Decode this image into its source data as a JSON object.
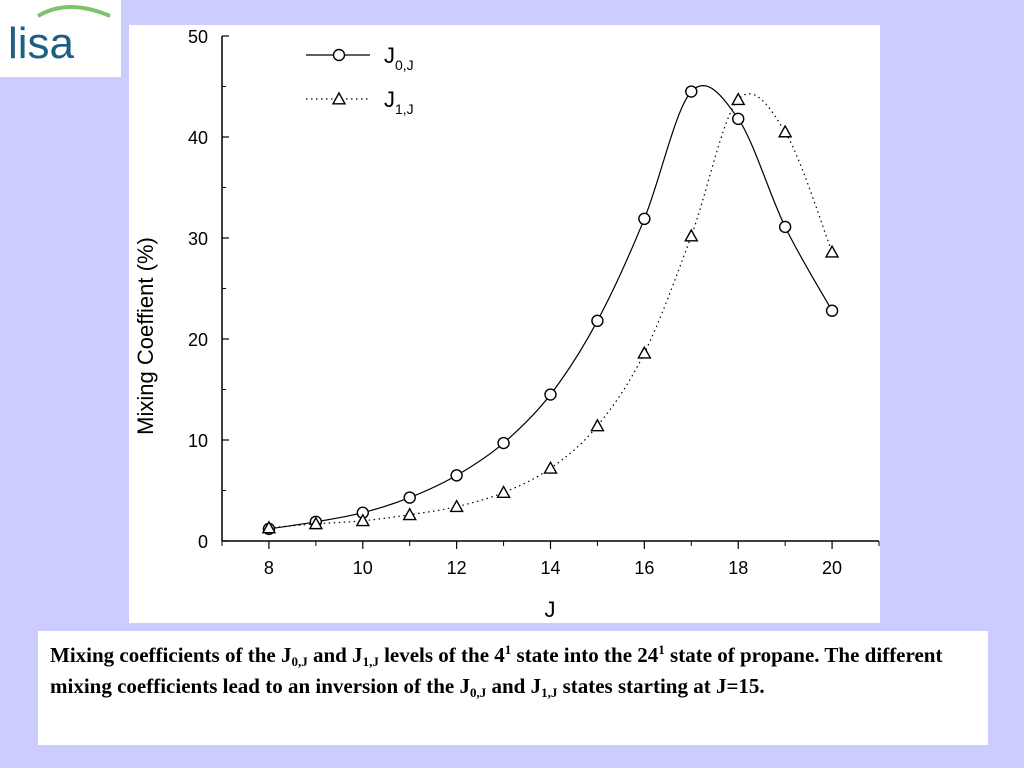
{
  "logo": {
    "text": "lisa",
    "color": "#1d5f82",
    "swoosh_color": "#7cc36a"
  },
  "chart_data": {
    "type": "line",
    "title": "",
    "xlabel": "J",
    "ylabel": "Mixing Coeffient (%)",
    "xlim": [
      7.0,
      21.0
    ],
    "ylim": [
      0,
      50
    ],
    "xticks": [
      8,
      10,
      12,
      14,
      16,
      18,
      20
    ],
    "yticks": [
      0,
      10,
      20,
      30,
      40,
      50
    ],
    "legend_position": "top-left",
    "series": [
      {
        "name": "J",
        "sub": "0,J",
        "marker": "circle",
        "line_style": "solid",
        "x": [
          8,
          9,
          10,
          11,
          12,
          13,
          14,
          15,
          16,
          17,
          18,
          19,
          20
        ],
        "values": [
          1.2,
          1.9,
          2.8,
          4.3,
          6.5,
          9.7,
          14.5,
          21.8,
          31.9,
          44.5,
          41.8,
          31.1,
          22.8
        ]
      },
      {
        "name": "J",
        "sub": "1,J",
        "marker": "triangle",
        "line_style": "dotted",
        "x": [
          8,
          9,
          10,
          11,
          12,
          13,
          14,
          15,
          16,
          17,
          18,
          19,
          20
        ],
        "values": [
          1.3,
          1.7,
          2.0,
          2.6,
          3.4,
          4.8,
          7.2,
          11.4,
          18.6,
          30.2,
          43.7,
          40.5,
          28.6
        ]
      }
    ]
  },
  "caption": {
    "p1": "Mixing coefficients of the J",
    "s1": "0,J",
    "p2": " and J",
    "s2": "1,J",
    "p3": " levels of the 4",
    "sup1": "1",
    "p4": " state into the 24",
    "sup2": "1",
    "p5": " state of propane. The different mixing coefficients lead to an inversion of the J",
    "s3": "0,J",
    "p6": " and J",
    "s4": "1,J",
    "p7": " states starting at J=15."
  }
}
